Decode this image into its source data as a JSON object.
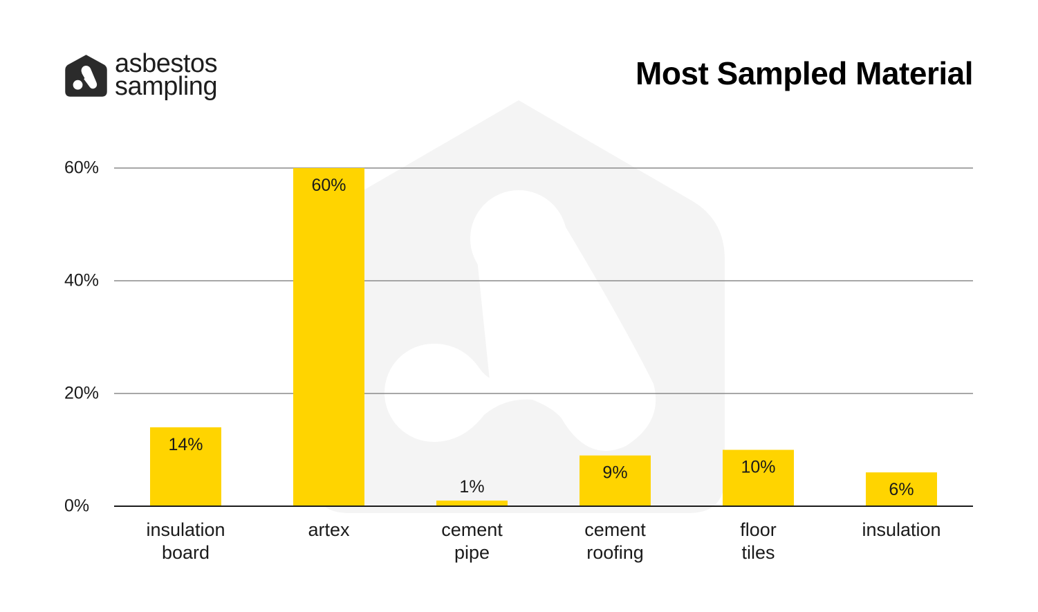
{
  "brand": {
    "line1": "asbestos",
    "line2": "sampling",
    "icon": "asbestos-sampling-logo-icon"
  },
  "colors": {
    "bar": "#FFD400",
    "grid": "#8a8a8a",
    "axis": "#1a1a1a",
    "text": "#1a1a1a",
    "watermark": "#f3f3f3",
    "logo": "#2b2b2b"
  },
  "chart_data": {
    "type": "bar",
    "title": "Most Sampled Material",
    "categories": [
      [
        "insulation",
        "board"
      ],
      [
        "artex"
      ],
      [
        "cement",
        "pipe"
      ],
      [
        "cement",
        "roofing"
      ],
      [
        "floor",
        "tiles"
      ],
      [
        "insulation"
      ]
    ],
    "values": [
      14,
      60,
      1,
      9,
      10,
      6
    ],
    "data_labels": [
      "14%",
      "60%",
      "1%",
      "9%",
      "10%",
      "6%"
    ],
    "y_ticks": [
      0,
      20,
      40,
      60
    ],
    "y_tick_labels": [
      "0%",
      "20%",
      "40%",
      "60%"
    ],
    "ylim": [
      0,
      60
    ],
    "grid": true,
    "xlabel": "",
    "ylabel": ""
  }
}
